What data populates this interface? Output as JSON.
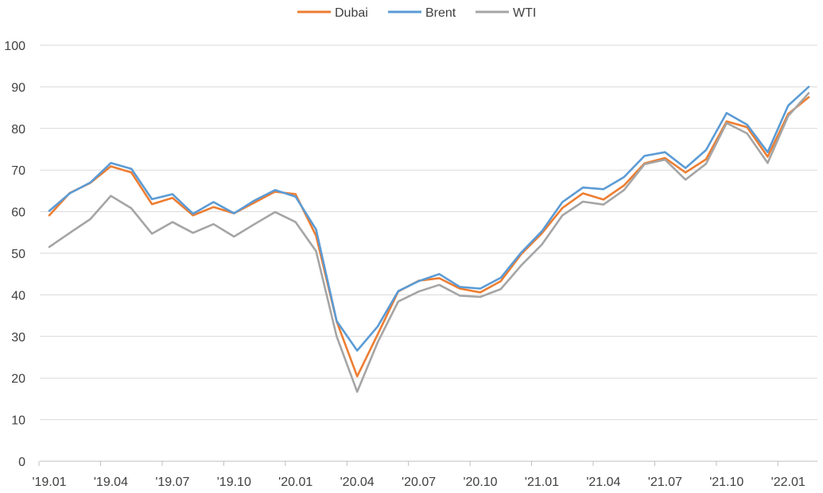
{
  "chart_data": {
    "type": "line",
    "title": "",
    "xlabel": "",
    "ylabel": "",
    "ylim": [
      0,
      100
    ],
    "yticks": [
      0,
      10,
      20,
      30,
      40,
      50,
      60,
      70,
      80,
      90,
      100
    ],
    "grid": true,
    "legend": "top-center",
    "x": [
      "'19.01",
      "'19.02",
      "'19.03",
      "'19.04",
      "'19.05",
      "'19.06",
      "'19.07",
      "'19.08",
      "'19.09",
      "'19.10",
      "'19.11",
      "'19.12",
      "'20.01",
      "'20.02",
      "'20.03",
      "'20.04",
      "'20.05",
      "'20.06",
      "'20.07",
      "'20.08",
      "'20.09",
      "'20.10",
      "'20.11",
      "'20.12",
      "'21.01",
      "'21.02",
      "'21.03",
      "'21.04",
      "'21.05",
      "'21.06",
      "'21.07",
      "'21.08",
      "'21.09",
      "'21.10",
      "'21.11",
      "'21.12",
      "'22.01",
      "'22.02"
    ],
    "xtick_labels": [
      "'19.01",
      "'19.04",
      "'19.07",
      "'19.10",
      "'20.01",
      "'20.04",
      "'20.07",
      "'20.10",
      "'21.01",
      "'21.04",
      "'21.07",
      "'21.10",
      "'22.01"
    ],
    "series": [
      {
        "name": "Dubai",
        "color": "#ed7d31",
        "values": [
          59.1,
          64.5,
          66.9,
          70.9,
          69.4,
          61.8,
          63.3,
          59.1,
          61.1,
          59.6,
          62.2,
          64.8,
          64.2,
          54.2,
          33.6,
          20.4,
          30.5,
          40.8,
          43.4,
          44.0,
          41.5,
          40.6,
          43.3,
          49.8,
          54.8,
          60.9,
          64.4,
          62.9,
          66.3,
          71.6,
          72.9,
          69.4,
          72.6,
          81.7,
          80.3,
          73.2,
          83.5,
          87.5
        ]
      },
      {
        "name": "Brent",
        "color": "#5b9bd5",
        "values": [
          60.2,
          64.4,
          67.0,
          71.7,
          70.3,
          63.0,
          64.2,
          59.5,
          62.3,
          59.6,
          62.7,
          65.2,
          63.6,
          55.7,
          33.7,
          26.6,
          32.4,
          40.9,
          43.3,
          45.0,
          41.9,
          41.5,
          44.1,
          50.2,
          55.3,
          62.3,
          65.8,
          65.4,
          68.3,
          73.4,
          74.3,
          70.5,
          74.8,
          83.7,
          80.9,
          74.3,
          85.5,
          90.0
        ]
      },
      {
        "name": "WTI",
        "color": "#a5a5a5",
        "values": [
          51.5,
          54.9,
          58.2,
          63.8,
          60.8,
          54.7,
          57.5,
          54.9,
          57.0,
          54.0,
          57.0,
          59.9,
          57.5,
          50.5,
          30.0,
          16.7,
          28.6,
          38.4,
          40.8,
          42.4,
          39.8,
          39.5,
          41.4,
          47.1,
          52.1,
          59.1,
          62.4,
          61.7,
          65.2,
          71.4,
          72.5,
          67.7,
          71.5,
          81.3,
          78.8,
          71.7,
          83.0,
          88.5
        ]
      }
    ]
  }
}
